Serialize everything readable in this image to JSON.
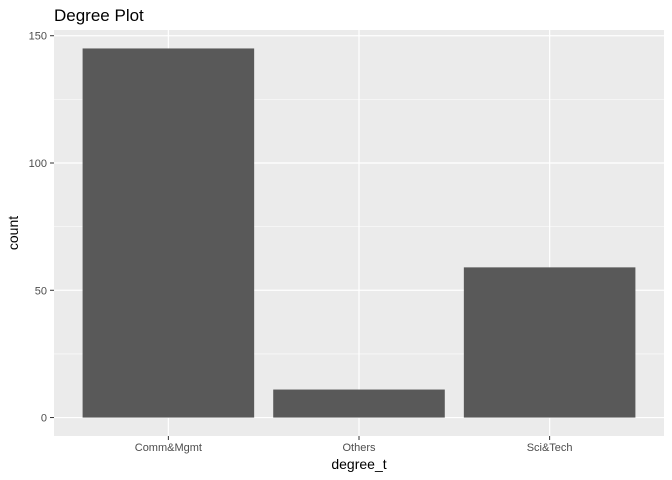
{
  "chart_data": {
    "type": "bar",
    "title": "Degree Plot",
    "xlabel": "degree_t",
    "ylabel": "count",
    "categories": [
      "Comm&Mgmt",
      "Others",
      "Sci&Tech"
    ],
    "values": [
      145,
      11,
      59
    ],
    "ylim": [
      -7.25,
      152.25
    ],
    "yticks": [
      0,
      50,
      100,
      150
    ],
    "ytick_labels": [
      "0",
      "50",
      "100",
      "150"
    ],
    "grid": true,
    "legend": "none",
    "colors": {
      "bar": "#595959",
      "panel_background": "#ebebeb",
      "grid": "#ffffff"
    }
  }
}
